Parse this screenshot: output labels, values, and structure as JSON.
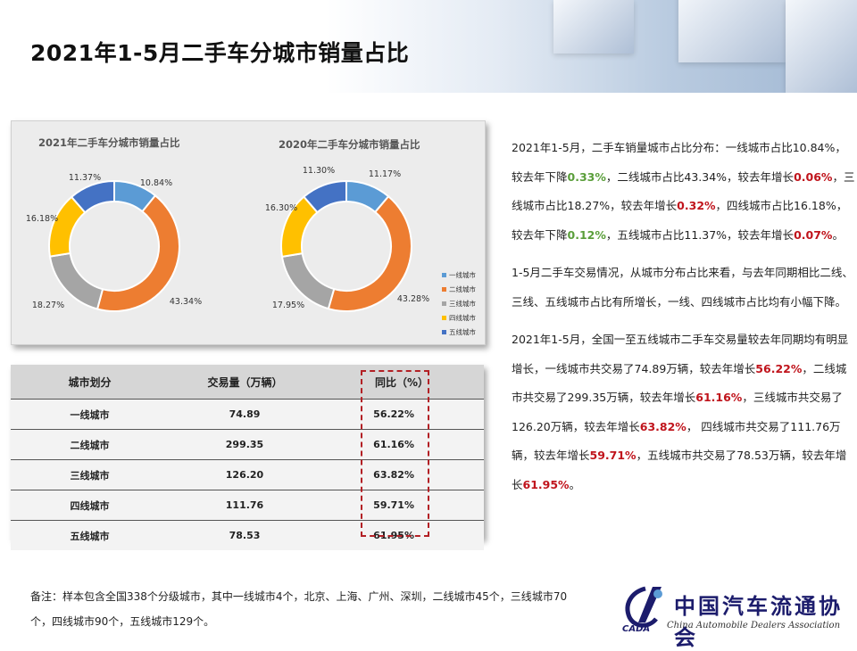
{
  "page_title": "2021年1-5月二手车分城市销量占比",
  "chart_data": [
    {
      "type": "pie",
      "title": "2021年二手车分城市销量占比",
      "categories": [
        "一线城市",
        "二线城市",
        "三线城市",
        "四线城市",
        "五线城市"
      ],
      "values": [
        10.84,
        43.34,
        18.27,
        16.18,
        11.37
      ],
      "labels": [
        "10.84%",
        "43.34%",
        "18.27%",
        "16.18%",
        "11.37%"
      ],
      "colors": [
        "#5b9bd5",
        "#ed7d31",
        "#a5a5a5",
        "#ffc000",
        "#4472c4"
      ]
    },
    {
      "type": "pie",
      "title": "2020年二手车分城市销量占比",
      "categories": [
        "一线城市",
        "二线城市",
        "三线城市",
        "四线城市",
        "五线城市"
      ],
      "values": [
        11.17,
        43.28,
        17.95,
        16.3,
        11.3
      ],
      "labels": [
        "11.17%",
        "43.28%",
        "17.95%",
        "16.30%",
        "11.30%"
      ],
      "colors": [
        "#5b9bd5",
        "#ed7d31",
        "#a5a5a5",
        "#ffc000",
        "#4472c4"
      ],
      "legend": "right"
    },
    {
      "type": "table",
      "headers": [
        "城市划分",
        "交易量（万辆）",
        "同比（%）"
      ],
      "rows": [
        [
          "一线城市",
          "74.89",
          "56.22%"
        ],
        [
          "二线城市",
          "299.35",
          "61.16%"
        ],
        [
          "三线城市",
          "126.20",
          "63.82%"
        ],
        [
          "四线城市",
          "111.76",
          "59.71%"
        ],
        [
          "五线城市",
          "78.53",
          "61.95%"
        ]
      ]
    }
  ],
  "text_panel": {
    "para1": [
      {
        "t": "2021年1-5月，二手车销量城市占比分布：一线城市占比10.84%，较去年下降",
        "s": ""
      },
      {
        "t": "0.33%",
        "s": "g"
      },
      {
        "t": "，二线城市占比43.34%，较去年增长",
        "s": ""
      },
      {
        "t": "0.06%",
        "s": "r"
      },
      {
        "t": "，三线城市占比18.27%，较去年增长",
        "s": ""
      },
      {
        "t": "0.32%",
        "s": "r"
      },
      {
        "t": "，四线城市占比16.18%，较去年下降",
        "s": ""
      },
      {
        "t": "0.12%",
        "s": "g"
      },
      {
        "t": "，五线城市占比11.37%，较去年增长",
        "s": ""
      },
      {
        "t": "0.07%",
        "s": "r"
      },
      {
        "t": "。",
        "s": ""
      }
    ],
    "para2": "1-5月二手车交易情况，从城市分布占比来看，与去年同期相比二线、三线、五线城市占比有所增长，一线、四线城市占比均有小幅下降。",
    "para3": [
      {
        "t": "2021年1-5月，全国一至五线城市二手车交易量较去年同期均有明显增长，一线城市共交易了74.89万辆，较去年增长",
        "s": ""
      },
      {
        "t": "56.22%",
        "s": "r"
      },
      {
        "t": "，二线城市共交易了299.35万辆，较去年增长",
        "s": ""
      },
      {
        "t": "61.16%",
        "s": "r"
      },
      {
        "t": "，三线城市共交易了126.20万辆，较去年增长",
        "s": ""
      },
      {
        "t": "63.82%",
        "s": "r"
      },
      {
        "t": "， 四线城市共交易了111.76万辆，较去年增长",
        "s": ""
      },
      {
        "t": "59.71%",
        "s": "r"
      },
      {
        "t": "，五线城市共交易了78.53万辆，较去年增长",
        "s": ""
      },
      {
        "t": "61.95%",
        "s": "r"
      },
      {
        "t": "。",
        "s": ""
      }
    ]
  },
  "note": "备注：样本包含全国338个分级城市，其中一线城市4个，北京、上海、广州、深圳，二线城市45个，三线城市70个，四线城市90个，五线城市129个。",
  "logo": {
    "name": "中国汽车流通协会",
    "abbr": "CADA",
    "sub": "China Automobile Dealers Association"
  }
}
